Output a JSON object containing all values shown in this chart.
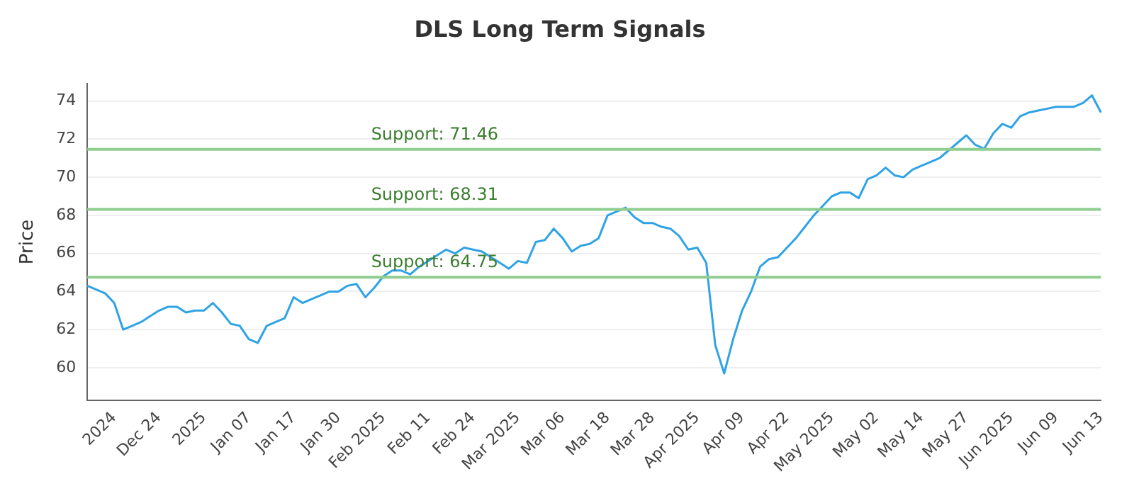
{
  "chart_data": {
    "type": "line",
    "title": "DLS Long Term Signals",
    "ylabel": "Price",
    "categories": [
      null,
      null,
      null,
      "2024",
      null,
      null,
      null,
      null,
      "Dec 24",
      null,
      null,
      null,
      null,
      "2025",
      null,
      null,
      null,
      null,
      "Jan 07",
      null,
      null,
      null,
      null,
      "Jan 17",
      null,
      null,
      null,
      null,
      "Jan 30",
      null,
      null,
      null,
      null,
      "Feb 2025",
      null,
      null,
      null,
      null,
      "Feb 11",
      null,
      null,
      null,
      null,
      "Feb 24",
      null,
      null,
      null,
      null,
      "Mar 2025",
      null,
      null,
      null,
      null,
      "Mar 06",
      null,
      null,
      null,
      null,
      "Mar 18",
      null,
      null,
      null,
      null,
      "Mar 28",
      null,
      null,
      null,
      null,
      "Apr 2025",
      null,
      null,
      null,
      null,
      "Apr 09",
      null,
      null,
      null,
      null,
      "Apr 22",
      null,
      null,
      null,
      null,
      "May 2025",
      null,
      null,
      null,
      null,
      "May 02",
      null,
      null,
      null,
      null,
      "May 14",
      null,
      null,
      null,
      null,
      "May 27",
      null,
      null,
      null,
      null,
      "Jun 2025",
      null,
      null,
      null,
      null,
      "Jun 09",
      null,
      null,
      null,
      null,
      "Jun 13"
    ],
    "series": [
      {
        "color": "#2fa3e6",
        "values": [
          64.3,
          64.1,
          63.9,
          63.4,
          62.0,
          62.2,
          62.4,
          62.7,
          63.0,
          63.2,
          63.2,
          62.9,
          63.0,
          63.0,
          63.4,
          62.9,
          62.3,
          62.2,
          61.5,
          61.3,
          62.2,
          62.4,
          62.6,
          63.7,
          63.4,
          63.6,
          63.8,
          64.0,
          64.0,
          64.3,
          64.4,
          63.7,
          64.2,
          64.8,
          65.1,
          65.1,
          64.9,
          65.3,
          65.6,
          65.9,
          66.2,
          66.0,
          66.3,
          66.2,
          66.1,
          65.8,
          65.5,
          65.2,
          65.6,
          65.5,
          66.6,
          66.7,
          67.3,
          66.8,
          66.1,
          66.4,
          66.5,
          66.8,
          68.0,
          68.2,
          68.4,
          67.9,
          67.6,
          67.6,
          67.4,
          67.3,
          66.9,
          66.2,
          66.3,
          65.5,
          61.2,
          59.7,
          61.5,
          63.0,
          64.0,
          65.3,
          65.7,
          65.8,
          66.3,
          66.8,
          67.4,
          68.0,
          68.5,
          69.0,
          69.2,
          69.2,
          68.9,
          69.9,
          70.1,
          70.5,
          70.1,
          70.0,
          70.4,
          70.6,
          70.8,
          71.0,
          71.4,
          71.8,
          72.2,
          71.7,
          71.5,
          72.3,
          72.8,
          72.6,
          73.2,
          73.4,
          73.5,
          73.6,
          73.7,
          73.7,
          73.7,
          73.9,
          74.3,
          73.4
        ]
      }
    ],
    "ylim": [
      58.3,
      74.9
    ],
    "yticks": [
      60,
      62,
      64,
      66,
      68,
      70,
      72,
      74
    ],
    "grid": "y",
    "legend": false,
    "marker": "none",
    "line_style": "solid",
    "ref_lines": [
      {
        "axis": "y",
        "value": 71.46,
        "label": "Support: 71.46",
        "color": "#8fce8f"
      },
      {
        "axis": "y",
        "value": 68.31,
        "label": "Support: 68.31",
        "color": "#8fce8f"
      },
      {
        "axis": "y",
        "value": 64.75,
        "label": "Support: 64.75",
        "color": "#8fce8f"
      }
    ]
  }
}
